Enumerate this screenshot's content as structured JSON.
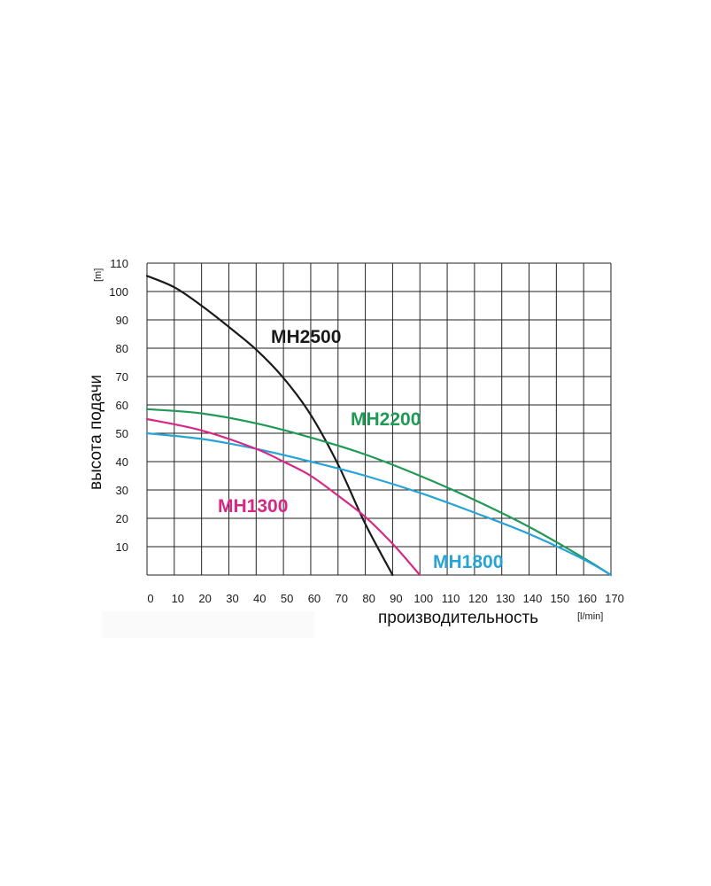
{
  "chart_data": {
    "type": "line",
    "xlabel": "производительность",
    "xunit": "[l/min]",
    "ylabel": "высота подачи",
    "yunit": "[m]",
    "xlim": [
      0,
      170
    ],
    "ylim": [
      0,
      110
    ],
    "x_ticks": [
      0,
      10,
      20,
      30,
      40,
      50,
      60,
      70,
      80,
      90,
      100,
      110,
      120,
      130,
      140,
      150,
      160,
      170
    ],
    "y_ticks": [
      10,
      20,
      30,
      40,
      50,
      60,
      70,
      80,
      90,
      100,
      110
    ],
    "grid": true,
    "series": [
      {
        "name": "MH2500",
        "color": "#1a1a1a",
        "x": [
          0,
          10,
          20,
          30,
          40,
          50,
          60,
          70,
          80,
          90
        ],
        "y": [
          105.5,
          101.5,
          95,
          87.5,
          79.5,
          69.5,
          56.5,
          39,
          18,
          0
        ]
      },
      {
        "name": "MH2200",
        "color": "#1e9a55",
        "x": [
          0,
          20,
          40,
          60,
          80,
          100,
          120,
          140,
          160,
          170
        ],
        "y": [
          58.5,
          57,
          53.5,
          48.5,
          42.5,
          35,
          26.5,
          17,
          6,
          0
        ]
      },
      {
        "name": "MH1800",
        "color": "#27a3d6",
        "x": [
          0,
          20,
          40,
          60,
          80,
          100,
          120,
          140,
          160,
          170
        ],
        "y": [
          50,
          48,
          44.5,
          40,
          35,
          29,
          22,
          14.5,
          5.5,
          0
        ]
      },
      {
        "name": "MH1300",
        "color": "#d62885",
        "x": [
          0,
          20,
          40,
          50,
          60,
          70,
          80,
          90,
          100
        ],
        "y": [
          55,
          51,
          44.5,
          40,
          35,
          28,
          20.5,
          11,
          0
        ]
      }
    ]
  }
}
